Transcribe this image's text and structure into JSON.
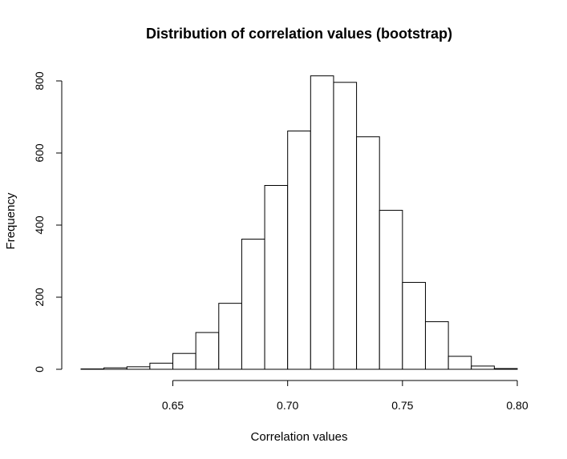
{
  "chart_data": {
    "type": "bar",
    "title": "Distribution of correlation values (bootstrap)",
    "xlabel": "Correlation values",
    "ylabel": "Frequency",
    "bin_width": 0.01,
    "bins": [
      {
        "start": 0.61,
        "end": 0.62,
        "count": 1
      },
      {
        "start": 0.62,
        "end": 0.63,
        "count": 4
      },
      {
        "start": 0.63,
        "end": 0.64,
        "count": 7
      },
      {
        "start": 0.64,
        "end": 0.65,
        "count": 17
      },
      {
        "start": 0.65,
        "end": 0.66,
        "count": 44
      },
      {
        "start": 0.66,
        "end": 0.67,
        "count": 102
      },
      {
        "start": 0.67,
        "end": 0.68,
        "count": 183
      },
      {
        "start": 0.68,
        "end": 0.69,
        "count": 361
      },
      {
        "start": 0.69,
        "end": 0.7,
        "count": 510
      },
      {
        "start": 0.7,
        "end": 0.71,
        "count": 661
      },
      {
        "start": 0.71,
        "end": 0.72,
        "count": 814
      },
      {
        "start": 0.72,
        "end": 0.73,
        "count": 796
      },
      {
        "start": 0.73,
        "end": 0.74,
        "count": 645
      },
      {
        "start": 0.74,
        "end": 0.75,
        "count": 441
      },
      {
        "start": 0.75,
        "end": 0.76,
        "count": 241
      },
      {
        "start": 0.76,
        "end": 0.77,
        "count": 132
      },
      {
        "start": 0.77,
        "end": 0.78,
        "count": 36
      },
      {
        "start": 0.78,
        "end": 0.79,
        "count": 9
      },
      {
        "start": 0.79,
        "end": 0.8,
        "count": 2
      }
    ],
    "xlim": [
      0.61,
      0.8
    ],
    "ylim": [
      0,
      814
    ],
    "x_ticks": [
      0.65,
      0.7,
      0.75,
      0.8
    ],
    "x_tick_labels": [
      "0.65",
      "0.70",
      "0.75",
      "0.80"
    ],
    "y_ticks": [
      0,
      200,
      400,
      600,
      800
    ],
    "y_tick_labels": [
      "0",
      "200",
      "400",
      "600",
      "800"
    ],
    "grid": false,
    "legend": "none",
    "colors": {
      "bar_fill": "#ffffff",
      "bar_stroke": "#000000"
    }
  }
}
